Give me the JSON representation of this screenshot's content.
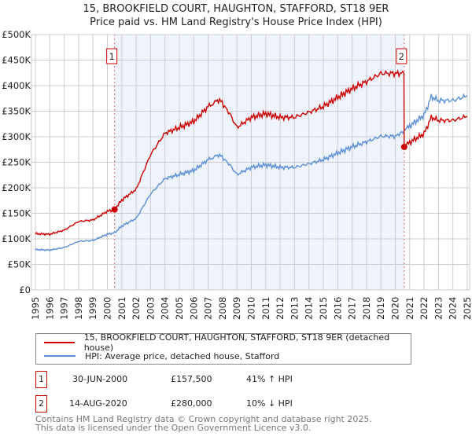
{
  "chart_data": {
    "type": "line",
    "title": "15, BROOKFIELD COURT, HAUGHTON, STAFFORD, ST18 9ER",
    "subtitle": "Price paid vs. HM Land Registry's House Price Index (HPI)",
    "xlim": [
      1995,
      2025
    ],
    "ylim": [
      0,
      500000
    ],
    "x_ticks": [
      "1995",
      "1996",
      "1997",
      "1998",
      "1999",
      "2000",
      "2001",
      "2002",
      "2003",
      "2004",
      "2005",
      "2006",
      "2007",
      "2008",
      "2009",
      "2010",
      "2011",
      "2012",
      "2013",
      "2014",
      "2015",
      "2016",
      "2017",
      "2018",
      "2019",
      "2020",
      "2021",
      "2022",
      "2023",
      "2024",
      "2025"
    ],
    "y_ticks": [
      "£0",
      "£50K",
      "£100K",
      "£150K",
      "£200K",
      "£250K",
      "£300K",
      "£350K",
      "£400K",
      "£450K",
      "£500K"
    ],
    "grid": true,
    "series": [
      {
        "name": "15, BROOKFIELD COURT, HAUGHTON, STAFFORD, ST18 9ER (detached house)",
        "color": "#cc0000",
        "x": [
          1995,
          1996,
          1997,
          1998,
          1999,
          2000,
          2000.5,
          2001,
          2002,
          2003,
          2004,
          2005,
          2006,
          2007,
          2007.8,
          2008.5,
          2009,
          2010,
          2011,
          2012,
          2013,
          2014,
          2015,
          2016,
          2017,
          2018,
          2019,
          2020,
          2020.6,
          2020.62,
          2021,
          2022,
          2022.5,
          2023,
          2024,
          2025
        ],
        "values": [
          110000,
          109000,
          117000,
          134000,
          137000,
          154000,
          157500,
          176000,
          197000,
          265000,
          307000,
          318000,
          330000,
          359000,
          373000,
          345000,
          318000,
          338000,
          345000,
          338000,
          338000,
          348000,
          359000,
          377000,
          394000,
          408000,
          424000,
          424000,
          424000,
          280000,
          289000,
          306000,
          338000,
          332000,
          332000,
          340000
        ]
      },
      {
        "name": "HPI: Average price, detached house, Stafford",
        "color": "#5b8fd6",
        "x": [
          1995,
          1996,
          1997,
          1998,
          1999,
          2000,
          2000.5,
          2001,
          2002,
          2003,
          2004,
          2005,
          2006,
          2007,
          2007.8,
          2008.5,
          2009,
          2010,
          2011,
          2012,
          2013,
          2014,
          2015,
          2016,
          2017,
          2018,
          2019,
          2020,
          2020.62,
          2021,
          2022,
          2022.5,
          2023,
          2024,
          2025
        ],
        "values": [
          79000,
          78000,
          83000,
          95000,
          97000,
          109000,
          112000,
          125000,
          140000,
          188000,
          218000,
          226000,
          234000,
          255000,
          265000,
          245000,
          226000,
          240000,
          245000,
          240000,
          240000,
          247000,
          255000,
          268000,
          280000,
          290000,
          301000,
          301000,
          311000,
          321000,
          342000,
          378000,
          371000,
          371000,
          380000
        ]
      }
    ],
    "sales": [
      {
        "label": "1",
        "x": 2000.5,
        "price": 157500,
        "date": "30-JUN-2000",
        "price_text": "£157,500",
        "hpi_text": "41% ↑ HPI"
      },
      {
        "label": "2",
        "x": 2020.62,
        "price": 280000,
        "date": "14-AUG-2020",
        "price_text": "£280,000",
        "hpi_text": "10% ↓ HPI"
      }
    ],
    "legend_position": "bottom"
  },
  "footer": {
    "line1": "Contains HM Land Registry data © Crown copyright and database right 2025.",
    "line2": "This data is licensed under the Open Government Licence v3.0."
  }
}
